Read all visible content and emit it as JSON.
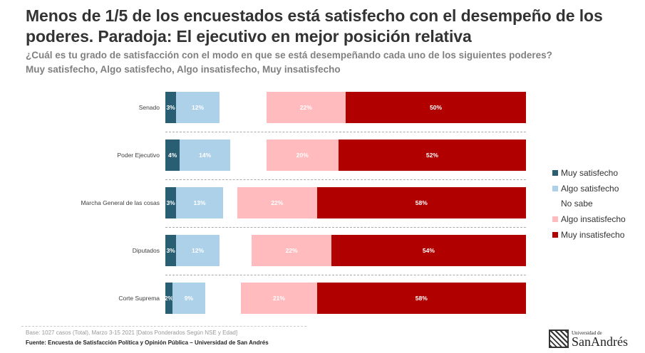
{
  "title": "Menos de 1/5 de los encuestados está satisfecho con el desempeño de los poderes. Paradoja: El ejecutivo en mejor posición relativa",
  "subtitle1": "¿Cuál es tu grado de satisfacción con el modo en que se está desempeñando cada uno de los siguientes poderes?",
  "subtitle2": "Muy satisfecho, Algo satisfecho, Algo insatisfecho, Muy insatisfecho",
  "chart_data": {
    "type": "bar",
    "orientation": "horizontal",
    "stacked": true,
    "unit": "%",
    "xlim": [
      0,
      100
    ],
    "categories": [
      "Senado",
      "Poder Ejecutivo",
      "Marcha General de las cosas",
      "Diputados",
      "Corte Suprema"
    ],
    "series": [
      {
        "name": "Muy satisfecho",
        "color": "#2a5f73",
        "values": [
          3,
          4,
          3,
          3,
          2
        ],
        "labeled": true
      },
      {
        "name": "Algo satisfecho",
        "color": "#aed1ea",
        "values": [
          12,
          14,
          13,
          12,
          9
        ],
        "labeled": true
      },
      {
        "name": "No sabe",
        "color": "#ffffff",
        "values": [
          13,
          10,
          4,
          9,
          10
        ],
        "labeled": false
      },
      {
        "name": "Algo insatisfecho",
        "color": "#ffbbbe",
        "values": [
          22,
          20,
          22,
          22,
          21
        ],
        "labeled": true
      },
      {
        "name": "Muy insatisfecho",
        "color": "#b00000",
        "values": [
          50,
          52,
          58,
          54,
          58
        ],
        "labeled": true
      }
    ],
    "legend_position": "right"
  },
  "footer": {
    "base": "Base: 1027 casos (Total), Marzo 3-15 2021 [Datos Ponderados Según NSE y Edad]",
    "source": "Fuente: Encuesta de Satisfacción Política y Opinión Pública – Universidad de San Andrés"
  },
  "logo": {
    "line1": "Universidad de",
    "line2": "SanAndrés"
  }
}
